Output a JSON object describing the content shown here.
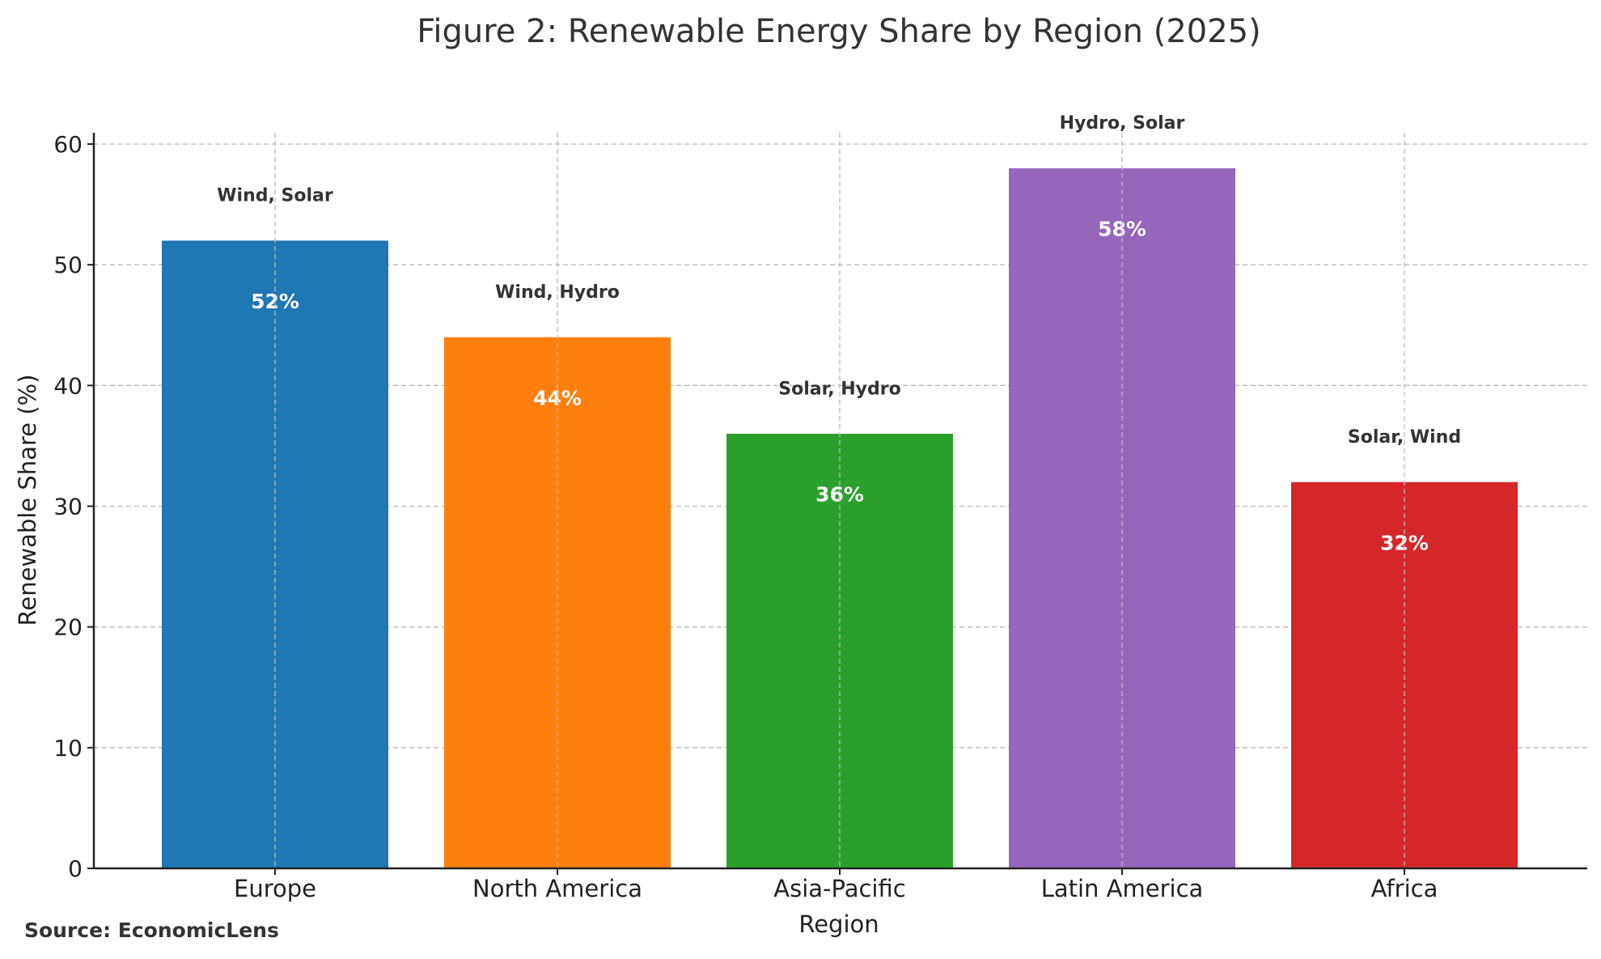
{
  "chart_data": {
    "type": "bar",
    "title": "Figure 2: Renewable Energy Share by Region (2025)",
    "xlabel": "Region",
    "ylabel": "Renewable Share (%)",
    "ylim": [
      0,
      61
    ],
    "yticks": [
      0,
      10,
      20,
      30,
      40,
      50,
      60
    ],
    "grid": true,
    "categories": [
      "Europe",
      "North America",
      "Asia-Pacific",
      "Latin America",
      "Africa"
    ],
    "values": [
      52,
      44,
      36,
      58,
      32
    ],
    "value_labels": [
      "52%",
      "44%",
      "36%",
      "58%",
      "32%"
    ],
    "annotations": [
      "Wind, Solar",
      "Wind, Hydro",
      "Solar, Hydro",
      "Hydro, Solar",
      "Solar, Wind"
    ],
    "colors": [
      "#1f77b4",
      "#ff7f0e",
      "#2ca02c",
      "#9467bd",
      "#d62728"
    ],
    "source": "Source: EconomicLens"
  }
}
